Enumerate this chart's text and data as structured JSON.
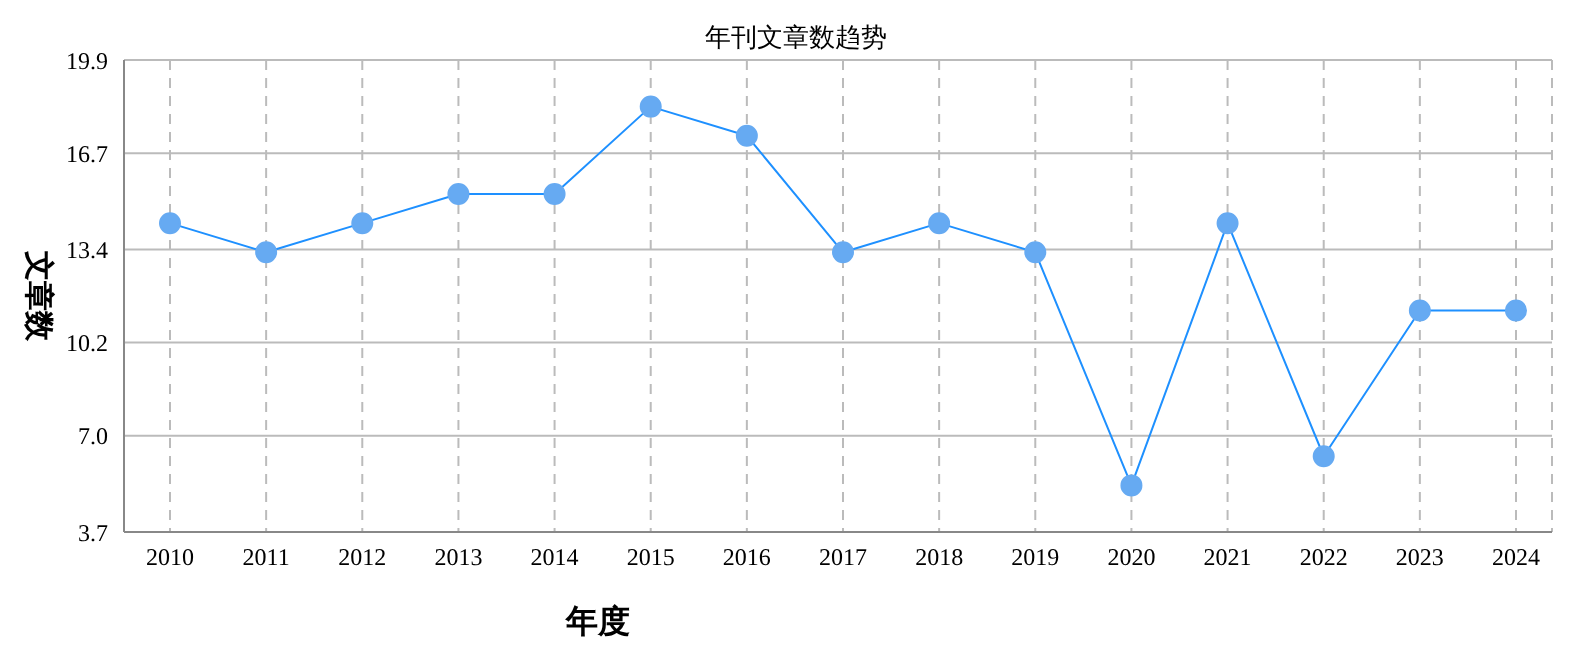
{
  "chart_data": {
    "type": "line",
    "title": "年刊文章数趋势",
    "xlabel": "年度",
    "ylabel": "文章数",
    "categories": [
      "2010",
      "2011",
      "2012",
      "2013",
      "2014",
      "2015",
      "2016",
      "2017",
      "2018",
      "2019",
      "2020",
      "2021",
      "2022",
      "2023",
      "2024"
    ],
    "series": [
      {
        "color": "#1e90ff",
        "values": [
          14.3,
          13.3,
          14.3,
          15.3,
          15.3,
          18.3,
          17.3,
          13.3,
          14.3,
          13.3,
          5.3,
          14.3,
          6.3,
          11.3,
          11.3
        ]
      }
    ],
    "ylim": [
      3.7,
      19.9
    ],
    "yticks": [
      3.7,
      {
        "value": 7,
        "label": "7.0"
      },
      10.2,
      13.4,
      16.7,
      19.9
    ],
    "grid": true,
    "legend": false,
    "marker": "circle",
    "line_style": "solid"
  }
}
